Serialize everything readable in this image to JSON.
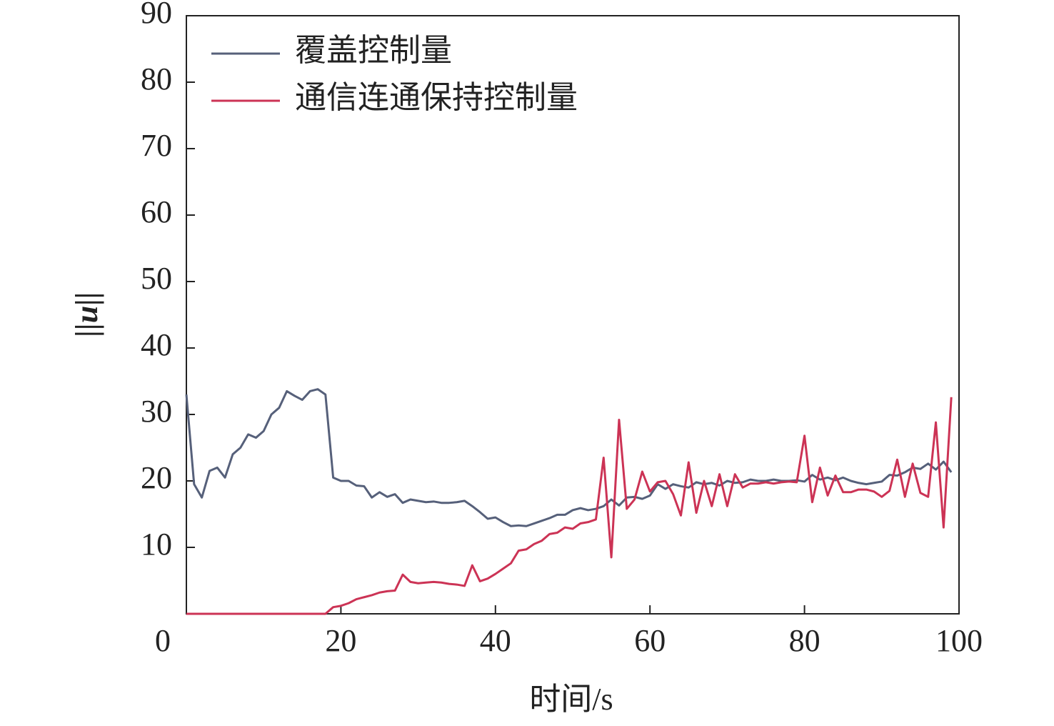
{
  "chart_data": {
    "type": "line",
    "xlabel": "时间/s",
    "ylabel": "||u||",
    "x": [
      0,
      1,
      2,
      3,
      4,
      5,
      6,
      7,
      8,
      9,
      10,
      11,
      12,
      13,
      14,
      15,
      16,
      17,
      18,
      19,
      20,
      21,
      22,
      23,
      24,
      25,
      26,
      27,
      28,
      29,
      30,
      31,
      32,
      33,
      34,
      35,
      36,
      37,
      38,
      39,
      40,
      41,
      42,
      43,
      44,
      45,
      46,
      47,
      48,
      49,
      50,
      51,
      52,
      53,
      54,
      55,
      56,
      57,
      58,
      59,
      60,
      61,
      62,
      63,
      64,
      65,
      66,
      67,
      68,
      69,
      70,
      71,
      72,
      73,
      74,
      75,
      76,
      77,
      78,
      79,
      80,
      81,
      82,
      83,
      84,
      85,
      86,
      87,
      88,
      89,
      90,
      91,
      92,
      93,
      94,
      95,
      96,
      97,
      98,
      99
    ],
    "series": [
      {
        "name": "覆盖控制量",
        "color": "#56607a",
        "values": [
          33,
          19.5,
          17.5,
          21.5,
          22,
          20.5,
          24,
          25,
          27,
          26.5,
          27.5,
          30,
          31,
          33.5,
          32.8,
          32.2,
          33.5,
          33.8,
          33,
          20.5,
          20,
          20,
          19.3,
          19.2,
          17.5,
          18.3,
          17.6,
          18,
          16.7,
          17.2,
          17,
          16.8,
          16.9,
          16.7,
          16.7,
          16.8,
          17,
          16.2,
          15.3,
          14.3,
          14.5,
          13.8,
          13.2,
          13.3,
          13.2,
          13.6,
          14,
          14.4,
          14.9,
          14.9,
          15.6,
          15.9,
          15.6,
          15.8,
          16.2,
          17.2,
          16.3,
          17.5,
          17.6,
          17.3,
          17.8,
          19.5,
          18.8,
          19.5,
          19.2,
          19,
          19.8,
          19.5,
          19.7,
          19.3,
          20,
          19.7,
          19.8,
          20.2,
          20,
          20,
          20.2,
          20,
          20,
          20.1,
          19.9,
          20.9,
          20.2,
          20.5,
          20.1,
          20.5,
          20,
          19.7,
          19.5,
          19.7,
          19.9,
          20.9,
          20.8,
          21.3,
          22,
          21.8,
          22.6,
          21.7,
          22.9,
          21.3
        ]
      },
      {
        "name": "通信连通保持控制量",
        "color": "#cc3355",
        "values": [
          0,
          0,
          0,
          0,
          0,
          0,
          0,
          0,
          0,
          0,
          0,
          0,
          0,
          0,
          0,
          0,
          0,
          0,
          0,
          1,
          1.2,
          1.6,
          2.2,
          2.5,
          2.8,
          3.2,
          3.4,
          3.5,
          5.9,
          4.8,
          4.6,
          4.7,
          4.8,
          4.7,
          4.5,
          4.4,
          4.2,
          7.3,
          4.9,
          5.3,
          6,
          6.8,
          7.6,
          9.5,
          9.7,
          10.5,
          11,
          12,
          12.2,
          13,
          12.8,
          13.6,
          13.8,
          14.2,
          23.5,
          8.5,
          29.2,
          15.8,
          17.2,
          21.4,
          18.4,
          19.8,
          20,
          18,
          14.8,
          22.8,
          15.2,
          20,
          16.2,
          21,
          16.2,
          21,
          19,
          19.6,
          19.6,
          19.8,
          19.6,
          19.8,
          19.9,
          19.8,
          26.8,
          16.8,
          22,
          17.8,
          20.8,
          18.3,
          18.3,
          18.7,
          18.7,
          18.4,
          17.6,
          18.5,
          23.2,
          17.6,
          22.6,
          18.2,
          17.6,
          28.8,
          13,
          32.6
        ]
      }
    ],
    "xlim": [
      0,
      100
    ],
    "xticks": [
      0,
      20,
      40,
      60,
      80,
      100
    ],
    "ylim": [
      0,
      90
    ],
    "yticks": [
      10,
      20,
      30,
      40,
      50,
      60,
      70,
      80,
      90
    ],
    "grid": false,
    "legend": "upper left"
  }
}
